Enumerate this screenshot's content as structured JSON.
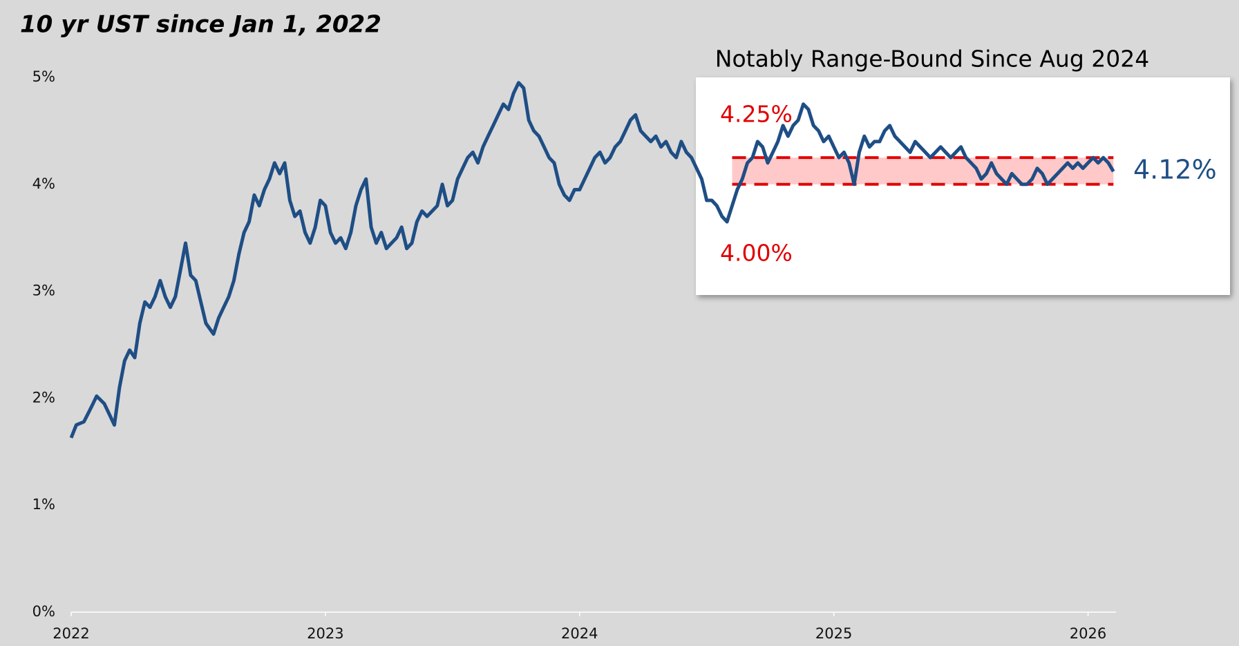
{
  "chart_data": {
    "type": "line",
    "title": "10 yr UST since Jan 1, 2022",
    "inset_title": "Notably Range-Bound Since Aug 2024",
    "xlim": [
      2022,
      2026.11
    ],
    "xticks": [
      2022,
      2023,
      2024,
      2025,
      2026
    ],
    "ylim": [
      0,
      5
    ],
    "yticks": [
      {
        "value": 0,
        "label": "0%"
      },
      {
        "value": 1,
        "label": "1%"
      },
      {
        "value": 2,
        "label": "2%"
      },
      {
        "value": 3,
        "label": "3%"
      },
      {
        "value": 4,
        "label": "4%"
      },
      {
        "value": 5,
        "label": "5%"
      }
    ],
    "range": {
      "x": [
        2024.6,
        2026.1
      ],
      "low": {
        "value": 4,
        "label": "4.00%"
      },
      "high": {
        "value": 4.25,
        "label": "4.25%"
      },
      "color": "#e00000",
      "fill": "#ffc9c9"
    },
    "last_label": {
      "text": "4.12%",
      "value": 4.12
    },
    "series": [
      {
        "name": "10 yr UST",
        "color": "#1f4e85",
        "x": [
          2022.0,
          2022.02,
          2022.05,
          2022.08,
          2022.1,
          2022.13,
          2022.15,
          2022.17,
          2022.19,
          2022.21,
          2022.23,
          2022.25,
          2022.27,
          2022.29,
          2022.31,
          2022.33,
          2022.35,
          2022.37,
          2022.39,
          2022.41,
          2022.43,
          2022.45,
          2022.47,
          2022.49,
          2022.51,
          2022.53,
          2022.56,
          2022.58,
          2022.6,
          2022.62,
          2022.64,
          2022.66,
          2022.68,
          2022.7,
          2022.72,
          2022.74,
          2022.76,
          2022.78,
          2022.8,
          2022.82,
          2022.84,
          2022.86,
          2022.88,
          2022.9,
          2022.92,
          2022.94,
          2022.96,
          2022.98,
          2023.0,
          2023.02,
          2023.04,
          2023.06,
          2023.08,
          2023.1,
          2023.12,
          2023.14,
          2023.16,
          2023.18,
          2023.2,
          2023.22,
          2023.24,
          2023.26,
          2023.28,
          2023.3,
          2023.32,
          2023.34,
          2023.36,
          2023.38,
          2023.4,
          2023.42,
          2023.44,
          2023.46,
          2023.48,
          2023.5,
          2023.52,
          2023.54,
          2023.56,
          2023.58,
          2023.6,
          2023.62,
          2023.64,
          2023.66,
          2023.68,
          2023.7,
          2023.72,
          2023.74,
          2023.76,
          2023.78,
          2023.8,
          2023.82,
          2023.84,
          2023.86,
          2023.88,
          2023.9,
          2023.92,
          2023.94,
          2023.96,
          2023.98,
          2024.0,
          2024.02,
          2024.04,
          2024.06,
          2024.08,
          2024.1,
          2024.12,
          2024.14,
          2024.16,
          2024.18,
          2024.2,
          2024.22,
          2024.24,
          2024.26,
          2024.28,
          2024.3,
          2024.32,
          2024.34,
          2024.36,
          2024.38,
          2024.4,
          2024.42,
          2024.44,
          2024.46,
          2024.48,
          2024.5,
          2024.52,
          2024.54,
          2024.56,
          2024.58,
          2024.6,
          2024.62,
          2024.64,
          2024.66,
          2024.68,
          2024.7,
          2024.72,
          2024.74,
          2024.76,
          2024.78,
          2024.8,
          2024.82,
          2024.84,
          2024.86,
          2024.88,
          2024.9,
          2024.92,
          2024.94,
          2024.96,
          2024.98,
          2025.0,
          2025.02,
          2025.04,
          2025.06,
          2025.08,
          2025.1,
          2025.12,
          2025.14,
          2025.16,
          2025.18,
          2025.2,
          2025.22,
          2025.24,
          2025.26,
          2025.28,
          2025.3,
          2025.32,
          2025.34,
          2025.36,
          2025.38,
          2025.4,
          2025.42,
          2025.44,
          2025.46,
          2025.48,
          2025.5,
          2025.52,
          2025.54,
          2025.56,
          2025.58,
          2025.6,
          2025.62,
          2025.64,
          2025.66,
          2025.68,
          2025.7,
          2025.72,
          2025.74,
          2025.76,
          2025.78,
          2025.8,
          2025.82,
          2025.84,
          2025.86,
          2025.88,
          2025.9,
          2025.92,
          2025.94,
          2025.96,
          2025.98,
          2026.0,
          2026.02,
          2026.04,
          2026.06,
          2026.08,
          2026.1
        ],
        "values": [
          1.63,
          1.75,
          1.78,
          1.92,
          2.02,
          1.95,
          1.85,
          1.75,
          2.1,
          2.35,
          2.45,
          2.38,
          2.7,
          2.9,
          2.85,
          2.95,
          3.1,
          2.95,
          2.85,
          2.95,
          3.2,
          3.45,
          3.15,
          3.1,
          2.9,
          2.7,
          2.6,
          2.75,
          2.85,
          2.95,
          3.1,
          3.35,
          3.55,
          3.65,
          3.9,
          3.8,
          3.95,
          4.05,
          4.2,
          4.1,
          4.2,
          3.85,
          3.7,
          3.75,
          3.55,
          3.45,
          3.6,
          3.85,
          3.8,
          3.55,
          3.45,
          3.5,
          3.4,
          3.55,
          3.8,
          3.95,
          4.05,
          3.6,
          3.45,
          3.55,
          3.4,
          3.45,
          3.5,
          3.6,
          3.4,
          3.45,
          3.65,
          3.75,
          3.7,
          3.75,
          3.8,
          4.0,
          3.8,
          3.85,
          4.05,
          4.15,
          4.25,
          4.3,
          4.2,
          4.35,
          4.45,
          4.55,
          4.65,
          4.75,
          4.7,
          4.85,
          4.95,
          4.9,
          4.6,
          4.5,
          4.45,
          4.35,
          4.25,
          4.2,
          4.0,
          3.9,
          3.85,
          3.95,
          3.95,
          4.05,
          4.15,
          4.25,
          4.3,
          4.2,
          4.25,
          4.35,
          4.4,
          4.5,
          4.6,
          4.65,
          4.5,
          4.45,
          4.4,
          4.45,
          4.35,
          4.4,
          4.3,
          4.25,
          4.4,
          4.3,
          4.25,
          4.15,
          4.05,
          3.85,
          3.85,
          3.8,
          3.7,
          3.65,
          3.8,
          3.95,
          4.05,
          4.2,
          4.25,
          4.4,
          4.35,
          4.2,
          4.3,
          4.4,
          4.55,
          4.45,
          4.55,
          4.6,
          4.75,
          4.7,
          4.55,
          4.5,
          4.4,
          4.45,
          4.35,
          4.25,
          4.3,
          4.2,
          4.0,
          4.3,
          4.45,
          4.35,
          4.4,
          4.4,
          4.5,
          4.55,
          4.45,
          4.4,
          4.35,
          4.3,
          4.4,
          4.35,
          4.3,
          4.25,
          4.3,
          4.35,
          4.3,
          4.25,
          4.3,
          4.35,
          4.25,
          4.2,
          4.15,
          4.05,
          4.1,
          4.2,
          4.1,
          4.05,
          4.0,
          4.1,
          4.05,
          4.0,
          4.0,
          4.05,
          4.15,
          4.1,
          4.0,
          4.05,
          4.1,
          4.15,
          4.2,
          4.15,
          4.2,
          4.15,
          4.2,
          4.25,
          4.2,
          4.25,
          4.2,
          4.12
        ]
      }
    ]
  }
}
